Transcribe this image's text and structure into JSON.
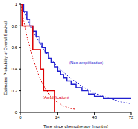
{
  "chart_data": {
    "type": "line",
    "x_label": "Time since chemotherapy (months)",
    "y_label": "Estimated Probability of Overall Survival",
    "xlim": [
      0,
      72
    ],
    "xticks": [
      0,
      24,
      48,
      72
    ],
    "ylim": [
      0,
      1
    ],
    "yticks": [
      0,
      0.2,
      0.4,
      0.6,
      0.8,
      1
    ],
    "grid": false,
    "series": [
      {
        "name": "(Non-amplification)",
        "type": "step",
        "color": "#2020d0",
        "line_style": "solid",
        "x": [
          0,
          2,
          4,
          6,
          8,
          10,
          12,
          14,
          16,
          18,
          20,
          22,
          24,
          26,
          28,
          30,
          33,
          36,
          40,
          44,
          48,
          54,
          72
        ],
        "values": [
          1,
          0.93,
          0.86,
          0.8,
          0.75,
          0.7,
          0.64,
          0.6,
          0.55,
          0.5,
          0.46,
          0.42,
          0.38,
          0.35,
          0.32,
          0.29,
          0.26,
          0.23,
          0.2,
          0.17,
          0.15,
          0.13,
          0.13
        ]
      },
      {
        "type": "line",
        "color": "#2020d0",
        "line_style": "dotted",
        "x": [
          0,
          4,
          8,
          12,
          16,
          20,
          24,
          28,
          32,
          36,
          40,
          44,
          48,
          52,
          56,
          60,
          64,
          68,
          72
        ],
        "values": [
          1,
          0.87,
          0.75,
          0.65,
          0.56,
          0.49,
          0.42,
          0.37,
          0.32,
          0.28,
          0.24,
          0.21,
          0.18,
          0.16,
          0.14,
          0.12,
          0.1,
          0.09,
          0.08
        ]
      },
      {
        "name": "(Amplification)",
        "type": "step",
        "color": "#dd0000",
        "line_style": "solid",
        "x": [
          0,
          1,
          8,
          13,
          15,
          22
        ],
        "values": [
          1,
          0.8,
          0.58,
          0.4,
          0.2,
          0
        ]
      },
      {
        "type": "line",
        "color": "#dd0000",
        "line_style": "dotted",
        "x": [
          0,
          4,
          8,
          12,
          16,
          20,
          24,
          28,
          32,
          36
        ],
        "values": [
          1,
          0.7,
          0.5,
          0.33,
          0.22,
          0.14,
          0.09,
          0.06,
          0.04,
          0.03
        ]
      }
    ]
  }
}
